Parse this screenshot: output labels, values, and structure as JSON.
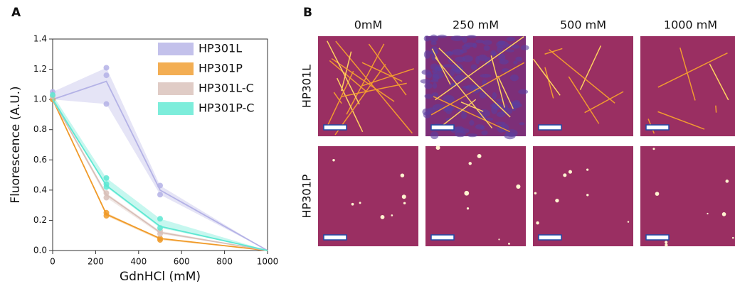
{
  "chart_data": {
    "type": "line",
    "panel_label": "A",
    "x_label": "GdnHCl (mM)",
    "y_label": "Fluorescence (A.U.)",
    "x": [
      0,
      250,
      500,
      1000
    ],
    "xlim": [
      0,
      1000
    ],
    "xticks": [
      0,
      200,
      400,
      600,
      800,
      1000
    ],
    "ylim": [
      0,
      1.4
    ],
    "yticks": [
      {
        "value": 0,
        "label": "0.0"
      },
      0.2,
      0.4,
      0.6,
      0.8,
      {
        "value": 1,
        "label": "1.0"
      },
      1.2,
      1.4
    ],
    "legend": "upper right",
    "series": [
      {
        "name": "HP301L",
        "color": "#b4b2e6",
        "values": [
          1.0,
          1.12,
          0.4,
          0.0
        ],
        "points": {
          "x": [
            0,
            0,
            250,
            250,
            250,
            500,
            500
          ],
          "y": [
            1.05,
            1.0,
            1.21,
            1.16,
            0.97,
            0.43,
            0.37
          ]
        }
      },
      {
        "name": "HP301P",
        "color": "#f09a28",
        "values": [
          1.0,
          0.24,
          0.08,
          0.0
        ],
        "points": {
          "x": [
            0,
            250,
            250,
            500,
            500
          ],
          "y": [
            1.0,
            0.25,
            0.23,
            0.08,
            0.07
          ]
        }
      },
      {
        "name": "HP301L-C",
        "color": "#d8bfb8",
        "values": [
          1.0,
          0.37,
          0.12,
          0.0
        ],
        "points": {
          "x": [
            0,
            250,
            250,
            500,
            500
          ],
          "y": [
            1.02,
            0.38,
            0.35,
            0.13,
            0.11
          ]
        }
      },
      {
        "name": "HP301P-C",
        "color": "#5de8d2",
        "values": [
          1.0,
          0.43,
          0.16,
          0.0
        ],
        "points": {
          "x": [
            0,
            250,
            250,
            250,
            500,
            500
          ],
          "y": [
            1.03,
            0.48,
            0.44,
            0.42,
            0.21,
            0.15
          ]
        }
      }
    ]
  },
  "image_panel": {
    "panel_label": "B",
    "columns": [
      "0mM",
      "250 mM",
      "500 mM",
      "1000 mM"
    ],
    "rows": [
      "HP301L",
      "HP301P"
    ]
  }
}
